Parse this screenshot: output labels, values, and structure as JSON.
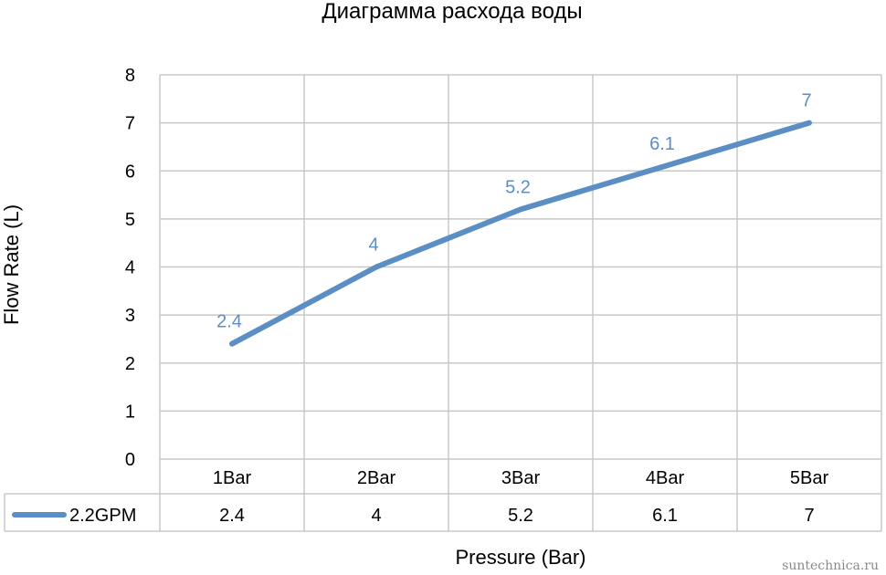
{
  "chart_data": {
    "type": "line",
    "title": "Диаграмма расхода воды",
    "xlabel": "Pressure (Bar)",
    "ylabel": "Flow Rate (L)",
    "categories": [
      "1Bar",
      "2Bar",
      "3Bar",
      "4Bar",
      "5Bar"
    ],
    "series": [
      {
        "name": "2.2GPM",
        "values": [
          2.4,
          4,
          5.2,
          6.1,
          7
        ],
        "color": "#5b8ec4"
      }
    ],
    "data_labels": [
      "2.4",
      "4",
      "5.2",
      "6.1",
      "7"
    ],
    "table_values": [
      "2.4",
      "4",
      "5.2",
      "6.1",
      "7"
    ],
    "ylim": [
      0,
      8
    ],
    "yticks": [
      "0",
      "1",
      "2",
      "3",
      "4",
      "5",
      "6",
      "7",
      "8"
    ],
    "grid": true,
    "legend": "data-table"
  },
  "watermark": "suntechnica.ru"
}
